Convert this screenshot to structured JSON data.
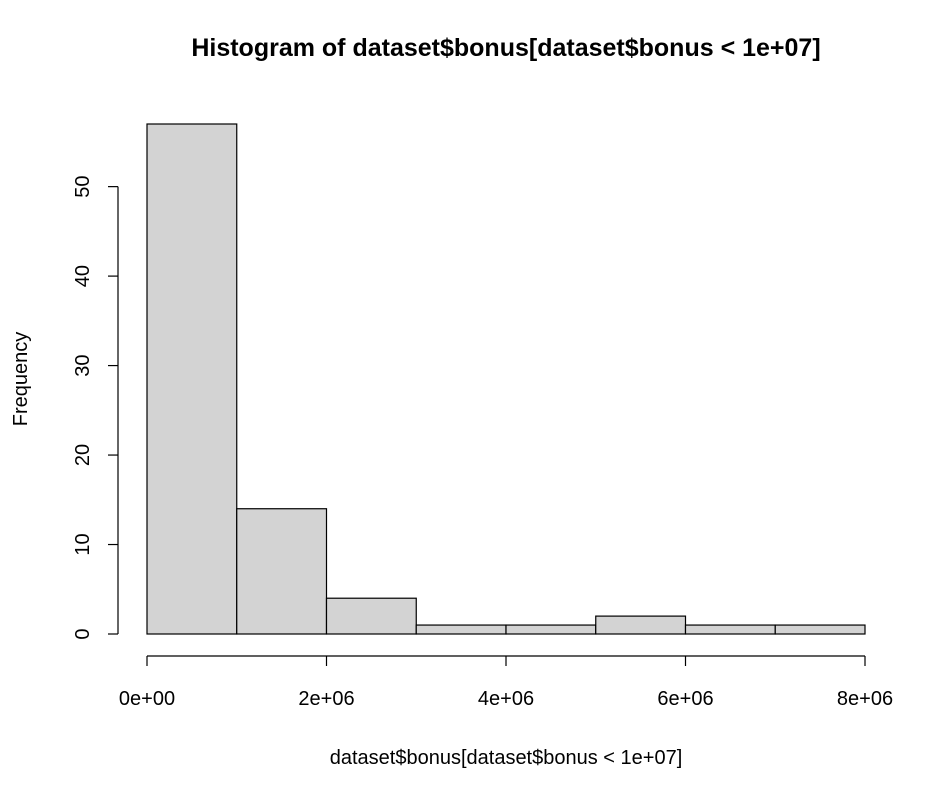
{
  "chart_data": {
    "type": "bar",
    "title": "Histogram of dataset$bonus[dataset$bonus < 1e+07]",
    "xlabel": "dataset$bonus[dataset$bonus < 1e+07]",
    "ylabel": "Frequency",
    "bins": [
      {
        "x0": 0,
        "x1": 1000000,
        "count": 57
      },
      {
        "x0": 1000000,
        "x1": 2000000,
        "count": 14
      },
      {
        "x0": 2000000,
        "x1": 3000000,
        "count": 4
      },
      {
        "x0": 3000000,
        "x1": 4000000,
        "count": 1
      },
      {
        "x0": 4000000,
        "x1": 5000000,
        "count": 1
      },
      {
        "x0": 5000000,
        "x1": 6000000,
        "count": 2
      },
      {
        "x0": 6000000,
        "x1": 7000000,
        "count": 1
      },
      {
        "x0": 7000000,
        "x1": 8000000,
        "count": 1
      }
    ],
    "xlim": [
      0,
      8000000
    ],
    "ylim": [
      0,
      57
    ],
    "x_ticks": [
      {
        "value": 0,
        "label": "0e+00"
      },
      {
        "value": 2000000,
        "label": "2e+06"
      },
      {
        "value": 4000000,
        "label": "4e+06"
      },
      {
        "value": 6000000,
        "label": "6e+06"
      },
      {
        "value": 8000000,
        "label": "8e+06"
      }
    ],
    "y_ticks": [
      {
        "value": 0,
        "label": "0"
      },
      {
        "value": 10,
        "label": "10"
      },
      {
        "value": 20,
        "label": "20"
      },
      {
        "value": 30,
        "label": "30"
      },
      {
        "value": 40,
        "label": "40"
      },
      {
        "value": 50,
        "label": "50"
      }
    ],
    "colors": {
      "bar_fill": "#d3d3d3",
      "bar_stroke": "#000000"
    },
    "grid": false,
    "legend": "none"
  }
}
